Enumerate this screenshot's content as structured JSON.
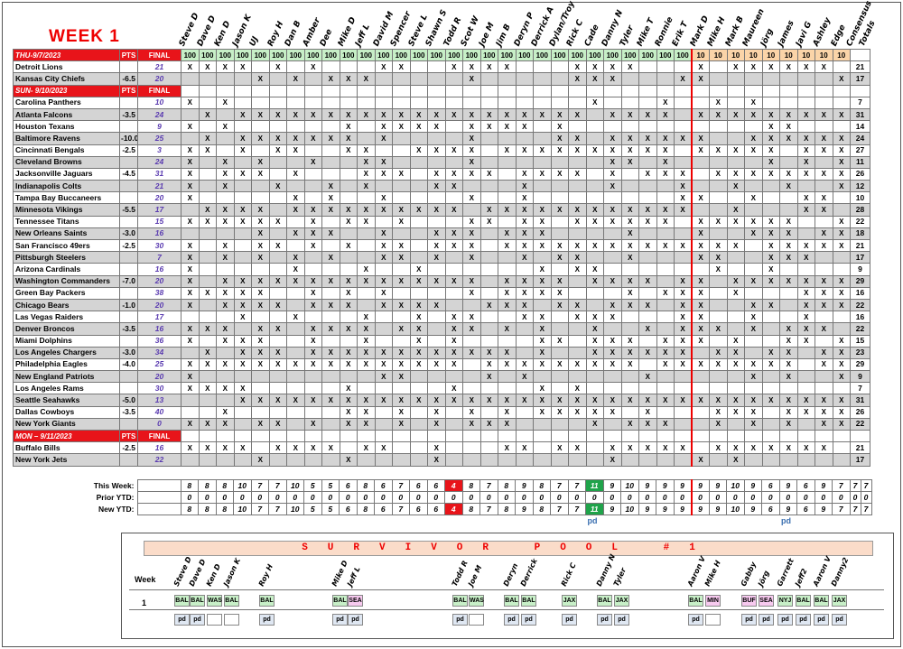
{
  "week_title": "WEEK 1",
  "players": [
    "Steve D",
    "Dave D",
    "Ken D",
    "Jason K",
    "UJ",
    "Roy H",
    "Dan B",
    "Amber",
    "Dee",
    "Mike D",
    "Jeff L",
    "David M",
    "Spencer",
    "Steve L",
    "Shawn S",
    "Todd R",
    "Scot W",
    "Joe M",
    "Jim B",
    "Deryn P",
    "Derrick A",
    "Dylan/Troy",
    "Rick C",
    "Cade",
    "Danny N",
    "Tyler",
    "Mike T",
    "Ronnie",
    "Erik T",
    "Mark D",
    "Mike H",
    "Mark B",
    "Maureen",
    "Jörg",
    "James",
    "Javi G",
    "Ashley",
    "Edge",
    "Consensus",
    "Totals"
  ],
  "sections": [
    {
      "header": "THU-9/7/2023",
      "pts_label": "PTS",
      "final_label": "FINAL",
      "wagers": [
        "100",
        "100",
        "100",
        "100",
        "100",
        "100",
        "100",
        "100",
        "100",
        "100",
        "100",
        "100",
        "100",
        "100",
        "100",
        "100",
        "100",
        "100",
        "100",
        "100",
        "100",
        "100",
        "100",
        "100",
        "100",
        "100",
        "100",
        "100",
        "100",
        "10",
        "10",
        "10",
        "10",
        "10",
        "10",
        "10",
        "10",
        "10"
      ],
      "games": [
        {
          "rows": [
            {
              "team": "Detroit Lions",
              "spread": "",
              "score": "21",
              "marks": "XXXX.X.X...XX..XXXX...XXXX...X.XXXXXX.",
              "total": "21"
            },
            {
              "team": "Kansas City Chiefs",
              "spread": "-6.5",
              "score": "20",
              "marks": "....X.X.XXX.....X.....XXX...XX.......XX",
              "total": "17"
            }
          ]
        }
      ]
    },
    {
      "header": "SUN- 9/10/2023",
      "pts_label": "PTS",
      "final_label": "FINAL",
      "games": [
        {
          "rows": [
            {
              "team": "Carolina Panthers",
              "spread": "",
              "score": "10",
              "marks": "X.X....................X...X..X.X......",
              "total": "7"
            },
            {
              "team": "Atlanta Falcons",
              "spread": "-3.5",
              "score": "24",
              "marks": ".X.XXXXXXXXXXXXXXXXXXXX.XXXX.XXXXXXXXX.",
              "total": "31"
            }
          ]
        },
        {
          "rows": [
            {
              "team": "Houston Texans",
              "spread": "",
              "score": "9",
              "marks": "X.X......X.XXXX.XXXX.X...........XX....",
              "total": "14"
            },
            {
              "team": "Baltimore Ravens",
              "spread": "-10.0",
              "score": "25",
              "marks": ".X.XXXXXXX.X....X....XX.XXXXXX..XXXXXX.",
              "total": "24"
            }
          ]
        },
        {
          "rows": [
            {
              "team": "Cincinnati Bengals",
              "spread": "-2.5",
              "score": "3",
              "marks": "XX.X.XX..XX..XXXX.XXXXXXXXXX.XXXXX.XXX.",
              "total": "27"
            },
            {
              "team": "Cleveland Browns",
              "spread": "",
              "score": "24",
              "marks": "X.X.X..X..XX....X.......XX.X.....X.X.X.",
              "total": "11"
            }
          ]
        },
        {
          "rows": [
            {
              "team": "Jacksonville Jaguars",
              "spread": "-4.5",
              "score": "31",
              "marks": "X.XXX.X...XXX.XXXX.XXXX.X.XXX.XXXXXXXX.",
              "total": "26"
            },
            {
              "team": "Indianapolis Colts",
              "spread": "",
              "score": "21",
              "marks": "X.X..X..X.X...XX...X....X...X..X..X..X.",
              "total": "12"
            }
          ]
        },
        {
          "rows": [
            {
              "team": "Tampa Bay Buccaneers",
              "spread": "",
              "score": "20",
              "marks": "X.....X.X..X....X..X........XX..X..XX..",
              "total": "10"
            },
            {
              "team": "Minnesota Vikings",
              "spread": "-5.5",
              "score": "17",
              "marks": ".XXXX.XXXXXXXXXX.XXXXXXXXXXXX..X...XX.X.",
              "total": "28"
            }
          ]
        },
        {
          "rows": [
            {
              "team": "Tennessee Titans",
              "spread": "",
              "score": "15",
              "marks": "XXXXXX.X.XX.X...XX.XX.XXXXXX.XXXXXX..X.",
              "total": "22"
            },
            {
              "team": "New Orleans Saints",
              "spread": "-3.0",
              "score": "16",
              "marks": "....X.XXX..X..XXX.XXX....X...X..XXX.XX.",
              "total": "18"
            }
          ]
        },
        {
          "rows": [
            {
              "team": "San Francisco 49ers",
              "spread": "-2.5",
              "score": "30",
              "marks": "X.X.XX.X.X.XX.XXX.XXXXXXXXXXXXXX.XXXXX.",
              "total": "21"
            },
            {
              "team": "Pittsburgh Steelers",
              "spread": "",
              "score": "7",
              "marks": "X.X.X.X.X..XX.X.X..X.XX..X...XX..XXX...",
              "total": "17"
            }
          ]
        },
        {
          "rows": [
            {
              "team": "Arizona Cardinals",
              "spread": "",
              "score": "16",
              "marks": "X.....X...X..X......X.XX......X..X.....",
              "total": "9"
            },
            {
              "team": "Washington Commanders",
              "spread": "-7.0",
              "score": "20",
              "marks": "X.XXXXXXXXXXXXXXX.XXXX.XXXX.XX.XXXXXXX.",
              "total": "29"
            }
          ]
        },
        {
          "rows": [
            {
              "team": "Green Bay Packers",
              "spread": "",
              "score": "38",
              "marks": "XXXXX..X.X.X....X.XXXX...X.XXX.X...XXXX.",
              "total": "16"
            },
            {
              "team": "Chicago Bears",
              "spread": "-1.0",
              "score": "20",
              "marks": "X.XXXX.XXX.XXXX..XXX.XX.XXX.XX..XX.XXX.",
              "total": "22"
            }
          ]
        },
        {
          "rows": [
            {
              "team": "Las Vegas Raiders",
              "spread": "",
              "score": "17",
              "marks": "...X..X...X..X.XX..XX.XXX...XX..X..X....",
              "total": "16"
            },
            {
              "team": "Denver Broncos",
              "spread": "-3.5",
              "score": "16",
              "marks": "XXX.XX.XXXX.XX.XX.X.X..X..X.XXX.X.XXX..",
              "total": "22"
            }
          ]
        },
        {
          "rows": [
            {
              "team": "Miami Dolphins",
              "spread": "",
              "score": "36",
              "marks": "X.XXX..X..X..X.X....XX.XXX.XXX.X..XX.X.",
              "total": "15"
            },
            {
              "team": "Los Angeles Chargers",
              "spread": "-3.0",
              "score": "34",
              "marks": ".X.XXX.XXXXXXXXXXXX.X..XXXXXX.XX.XX.XX.",
              "total": "23"
            }
          ]
        },
        {
          "rows": [
            {
              "team": "Philadelphia Eagles",
              "spread": "-4.0",
              "score": "25",
              "marks": "XXXXXXXXXXXXXXXX.XXXXXXXXX.XXXXXXXX.XX.",
              "total": "29"
            },
            {
              "team": "New England Patriots",
              "spread": "",
              "score": "20",
              "marks": "X..........XX....X.X......X.....X.X..X.",
              "total": "9"
            }
          ]
        },
        {
          "rows": [
            {
              "team": "Los Angeles Rams",
              "spread": "",
              "score": "30",
              "marks": "XXXX.....X.....X....X.X...............",
              "total": "7"
            },
            {
              "team": "Seattle Seahawks",
              "spread": "-5.0",
              "score": "13",
              "marks": "...XXXXXXXXXXXXXXXXXXXXXXXXXXXXXXXXXXXX.",
              "total": "31"
            }
          ]
        },
        {
          "rows": [
            {
              "team": "Dallas Cowboys",
              "spread": "-3.5",
              "score": "40",
              "marks": "..X......XX.X.X.X.X.XXXXX.X...XXX.XXXX.",
              "total": "26"
            },
            {
              "team": "New York Giants",
              "spread": "",
              "score": "0",
              "marks": "XXX.XX.X.XX.X.X.XXX....X.XXX..X.X.X.XX.",
              "total": "22"
            }
          ]
        }
      ]
    },
    {
      "header": "MON – 9/11/2023",
      "pts_label": "PTS",
      "final_label": "FINAL",
      "games": [
        {
          "rows": [
            {
              "team": "Buffalo Bills",
              "spread": "-2.5",
              "score": "16",
              "marks": "XXXX.XXXX.XX..X...XX.XX.XXXXX.XXXXXXX.",
              "total": "21"
            },
            {
              "team": "New York Jets",
              "spread": "",
              "score": "22",
              "marks": "....X....X....X.........X....X.X......",
              "total": "17"
            }
          ]
        }
      ]
    }
  ],
  "summary": {
    "this_week_label": "This Week:",
    "prior_label": "Prior YTD:",
    "new_label": "New YTD:",
    "this_week": [
      "8",
      "8",
      "8",
      "10",
      "7",
      "7",
      "10",
      "5",
      "5",
      "6",
      "8",
      "6",
      "7",
      "6",
      "6",
      "4",
      "8",
      "7",
      "8",
      "9",
      "8",
      "7",
      "7",
      "11",
      "9",
      "10",
      "9",
      "9",
      "9",
      "9",
      "9",
      "10",
      "9",
      "6",
      "9",
      "6",
      "9",
      "7",
      "7",
      "7"
    ],
    "prior": [
      "0",
      "0",
      "0",
      "0",
      "0",
      "0",
      "0",
      "0",
      "0",
      "0",
      "0",
      "0",
      "0",
      "0",
      "0",
      "0",
      "0",
      "0",
      "0",
      "0",
      "0",
      "0",
      "0",
      "0",
      "0",
      "0",
      "0",
      "0",
      "0",
      "0",
      "0",
      "0",
      "0",
      "0",
      "0",
      "0",
      "0",
      "0",
      "0",
      "0"
    ],
    "new_ytd": [
      "8",
      "8",
      "8",
      "10",
      "7",
      "7",
      "10",
      "5",
      "5",
      "6",
      "8",
      "6",
      "7",
      "6",
      "6",
      "4",
      "8",
      "7",
      "8",
      "9",
      "8",
      "7",
      "7",
      "11",
      "9",
      "10",
      "9",
      "9",
      "9",
      "9",
      "9",
      "10",
      "9",
      "6",
      "9",
      "6",
      "9",
      "7",
      "7",
      "7"
    ],
    "low_index": 15,
    "high_index": 23,
    "pd_notes": [
      "pd",
      "pd"
    ]
  },
  "survivor": {
    "title": "SURVIVOR POOL #1",
    "week_label": "Week",
    "week_number": "1",
    "entries": [
      {
        "name": "Steve D",
        "pick": "BAL",
        "paid": "pd"
      },
      {
        "name": "Dave D",
        "pick": "BAL",
        "paid": "pd"
      },
      {
        "name": "Ken D",
        "pick": "WAS",
        "paid": ""
      },
      {
        "name": "Jason K",
        "pick": "BAL",
        "paid": ""
      },
      {
        "name": "Roy H",
        "pick": "BAL",
        "paid": "pd"
      },
      {
        "name": "Mike D",
        "pick": "BAL",
        "paid": "pd"
      },
      {
        "name": "Jeff L",
        "pick": "SEA",
        "paid": "pd"
      },
      {
        "name": "Todd R",
        "pick": "BAL",
        "paid": "pd"
      },
      {
        "name": "Joe M",
        "pick": "WAS",
        "paid": ""
      },
      {
        "name": "Deryn",
        "pick": "BAL",
        "paid": "pd"
      },
      {
        "name": "Derrick",
        "pick": "BAL",
        "paid": "pd"
      },
      {
        "name": "Rick C",
        "pick": "JAX",
        "paid": "pd"
      },
      {
        "name": "Danny N",
        "pick": "BAL",
        "paid": "pd"
      },
      {
        "name": "Tyler",
        "pick": "JAX",
        "paid": "pd"
      },
      {
        "name": "Aaron V",
        "pick": "BAL",
        "paid": "pd"
      },
      {
        "name": "Mike H",
        "pick": "MIN",
        "paid": ""
      },
      {
        "name": "Gabby",
        "pick": "BUF",
        "paid": "pd"
      },
      {
        "name": "Jörg",
        "pick": "SEA",
        "paid": "pd"
      },
      {
        "name": "Garrett",
        "pick": "NYJ",
        "paid": "pd"
      },
      {
        "name": "Jeff2",
        "pick": "BAL",
        "paid": "pd"
      },
      {
        "name": "Aaron V",
        "pick": "BAL",
        "paid": "pd"
      },
      {
        "name": "Danny2",
        "pick": "JAX",
        "paid": "pd"
      }
    ]
  },
  "colors": {
    "red": "#e8141a",
    "green": "#1fa34a",
    "wager_green": "#c7efc7",
    "wager_orange": "#fbd4a8",
    "shade": "#d4d4d4",
    "score_purple": "#5a3bb0",
    "survivor_title_bg": "#fbdcc9"
  }
}
